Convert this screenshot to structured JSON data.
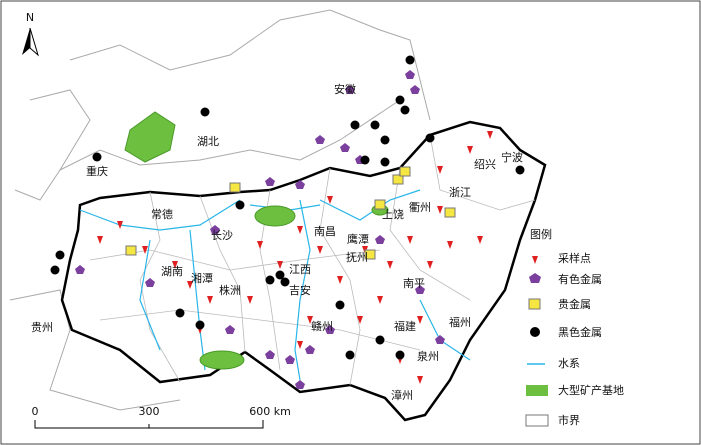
{
  "north": "N",
  "places": [
    "安徽",
    "湖北",
    "重庆",
    "常德",
    "长沙",
    "湖南",
    "湘潭",
    "株洲",
    "贵州",
    "江西",
    "吉安",
    "赣州",
    "南昌",
    "鹰潭",
    "抚州",
    "上饶",
    "衢州",
    "浙江",
    "绍兴",
    "宁波",
    "南平",
    "福州",
    "福建",
    "泉州",
    "漳州"
  ],
  "legend": {
    "title": "图例",
    "items": [
      "采样点",
      "有色金属",
      "贵金属",
      "黑色金属",
      "水系",
      "大型矿产基地",
      "市界"
    ]
  },
  "scale_bar": [
    "0",
    "300",
    "600 km"
  ]
}
